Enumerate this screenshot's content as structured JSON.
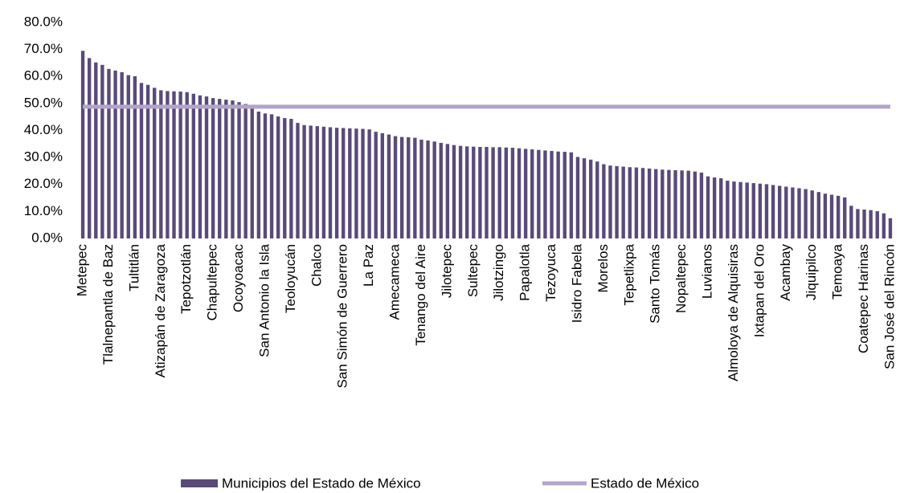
{
  "chart_data": {
    "type": "bar",
    "categories": [
      "Metepec",
      null,
      null,
      null,
      "Tlalnepantla de Baz",
      null,
      null,
      null,
      "Tultitlán",
      null,
      null,
      null,
      "Atizapán de Zaragoza",
      null,
      null,
      null,
      "Tepotzotlán",
      null,
      null,
      null,
      "Chapultepec",
      null,
      null,
      null,
      "Ocoyoacac",
      null,
      null,
      null,
      "San Antonio la Isla",
      null,
      null,
      null,
      "Teoloyucán",
      null,
      null,
      null,
      "Chalco",
      null,
      null,
      null,
      "San Simón de Guerrero",
      null,
      null,
      null,
      "La Paz",
      null,
      null,
      null,
      "Amecameca",
      null,
      null,
      null,
      "Tenango del Aire",
      null,
      null,
      null,
      "Jilotepec",
      null,
      null,
      null,
      "Sultepec",
      null,
      null,
      null,
      "Jilotzingo",
      null,
      null,
      null,
      "Papalotla",
      null,
      null,
      null,
      "Tezoyuca",
      null,
      null,
      null,
      "Isidro Fabela",
      null,
      null,
      null,
      "Morelos",
      null,
      null,
      null,
      "Tepetlixpa",
      null,
      null,
      null,
      "Santo Tomás",
      null,
      null,
      null,
      "Nopaltepec",
      null,
      null,
      null,
      "Luvianos",
      null,
      null,
      null,
      "Almoloya de Alquisiras",
      null,
      null,
      null,
      "Ixtapan del Oro",
      null,
      null,
      null,
      "Acambay",
      null,
      null,
      null,
      "Jiquipilco",
      null,
      null,
      null,
      "Temoaya",
      null,
      null,
      null,
      "Coatepec Harinas",
      null,
      null,
      null,
      "San José del Rincón"
    ],
    "series": [
      {
        "name": "Municipios del Estado de México",
        "color": "#5a4a78",
        "type": "bar",
        "values": [
          69.5,
          66.8,
          65.2,
          64.3,
          62.8,
          62.2,
          61.6,
          60.5,
          60.1,
          57.6,
          56.9,
          55.8,
          54.9,
          54.6,
          54.5,
          54.4,
          54.2,
          53.6,
          53.0,
          52.6,
          52.0,
          51.7,
          51.4,
          51.1,
          50.5,
          49.8,
          48.2,
          47.0,
          46.3,
          46.0,
          45.2,
          44.6,
          44.3,
          42.8,
          42.0,
          41.8,
          41.6,
          41.4,
          41.2,
          41.0,
          40.9,
          40.8,
          40.7,
          40.6,
          40.4,
          39.5,
          39.0,
          38.5,
          37.9,
          37.6,
          37.5,
          37.3,
          36.6,
          36.3,
          35.9,
          35.4,
          35.0,
          34.6,
          34.3,
          34.1,
          34.0,
          33.9,
          33.9,
          33.8,
          33.8,
          33.7,
          33.6,
          33.4,
          33.2,
          33.0,
          32.8,
          32.6,
          32.4,
          32.2,
          32.1,
          31.9,
          30.2,
          29.7,
          29.2,
          28.5,
          27.5,
          27.0,
          26.8,
          26.6,
          26.4,
          26.3,
          26.1,
          25.9,
          25.7,
          25.5,
          25.4,
          25.3,
          25.2,
          25.1,
          24.8,
          24.4,
          23.0,
          22.6,
          22.3,
          21.4,
          21.1,
          20.9,
          20.7,
          20.5,
          20.3,
          20.1,
          19.8,
          19.5,
          19.2,
          18.9,
          18.6,
          18.3,
          17.8,
          17.2,
          16.6,
          16.2,
          15.8,
          15.2,
          12.1,
          10.9,
          10.7,
          10.5,
          10.1,
          9.3,
          7.5
        ]
      },
      {
        "name": "Estado de México",
        "color": "#b4a4cc",
        "type": "line",
        "values": [
          48.8,
          48.8,
          48.8,
          48.8,
          48.8,
          48.8,
          48.8,
          48.8,
          48.8,
          48.8,
          48.8,
          48.8,
          48.8,
          48.8,
          48.8,
          48.8,
          48.8,
          48.8,
          48.8,
          48.8,
          48.8,
          48.8,
          48.8,
          48.8,
          48.8,
          48.8,
          48.8,
          48.8,
          48.8,
          48.8,
          48.8,
          48.8,
          48.8,
          48.8,
          48.8,
          48.8,
          48.8,
          48.8,
          48.8,
          48.8,
          48.8,
          48.8,
          48.8,
          48.8,
          48.8,
          48.8,
          48.8,
          48.8,
          48.8,
          48.8,
          48.8,
          48.8,
          48.8,
          48.8,
          48.8,
          48.8,
          48.8,
          48.8,
          48.8,
          48.8,
          48.8,
          48.8,
          48.8,
          48.8,
          48.8,
          48.8,
          48.8,
          48.8,
          48.8,
          48.8,
          48.8,
          48.8,
          48.8,
          48.8,
          48.8,
          48.8,
          48.8,
          48.8,
          48.8,
          48.8,
          48.8,
          48.8,
          48.8,
          48.8,
          48.8,
          48.8,
          48.8,
          48.8,
          48.8,
          48.8,
          48.8,
          48.8,
          48.8,
          48.8,
          48.8,
          48.8,
          48.8,
          48.8,
          48.8,
          48.8,
          48.8,
          48.8,
          48.8,
          48.8,
          48.8,
          48.8,
          48.8,
          48.8,
          48.8,
          48.8,
          48.8,
          48.8,
          48.8,
          48.8,
          48.8,
          48.8,
          48.8,
          48.8,
          48.8,
          48.8,
          48.8,
          48.8,
          48.8,
          48.8,
          48.8
        ]
      }
    ],
    "ylim": [
      0,
      80
    ],
    "yticks": [
      {
        "value": 0,
        "label": "0.0%"
      },
      {
        "value": 10,
        "label": "10.0%"
      },
      {
        "value": 20,
        "label": "20.0%"
      },
      {
        "value": 30,
        "label": "30.0%"
      },
      {
        "value": 40,
        "label": "40.0%"
      },
      {
        "value": 50,
        "label": "50.0%"
      },
      {
        "value": 60,
        "label": "60.0%"
      },
      {
        "value": 70,
        "label": "70.0%"
      },
      {
        "value": 80,
        "label": "80.0%"
      }
    ],
    "grid": false,
    "legend": "bottom"
  }
}
